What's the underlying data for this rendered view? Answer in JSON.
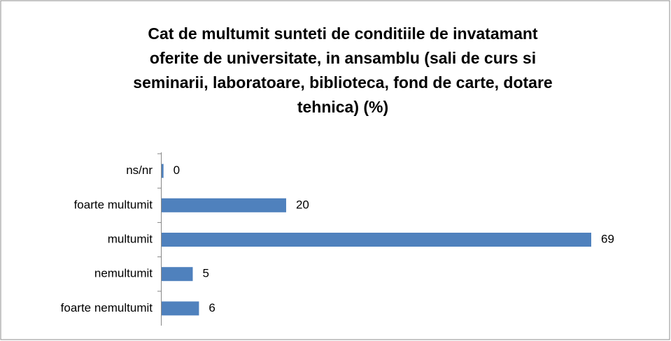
{
  "chart_data": {
    "type": "barh",
    "title": [
      "Cat de multumit sunteti de conditiile de invatamant",
      "oferite de universitate, in ansamblu (sali de curs si",
      "seminarii, laboratoare, biblioteca, fond de carte, dotare",
      "tehnica) (%)"
    ],
    "categories": [
      "ns/nr",
      "foarte multumit",
      "multumit",
      "nemultumit",
      "foarte nemultumit"
    ],
    "values": [
      0.3,
      20,
      69,
      5,
      6
    ],
    "value_labels": [
      "0",
      "20",
      "69",
      "5",
      "6"
    ],
    "color": "#4f81bd"
  }
}
